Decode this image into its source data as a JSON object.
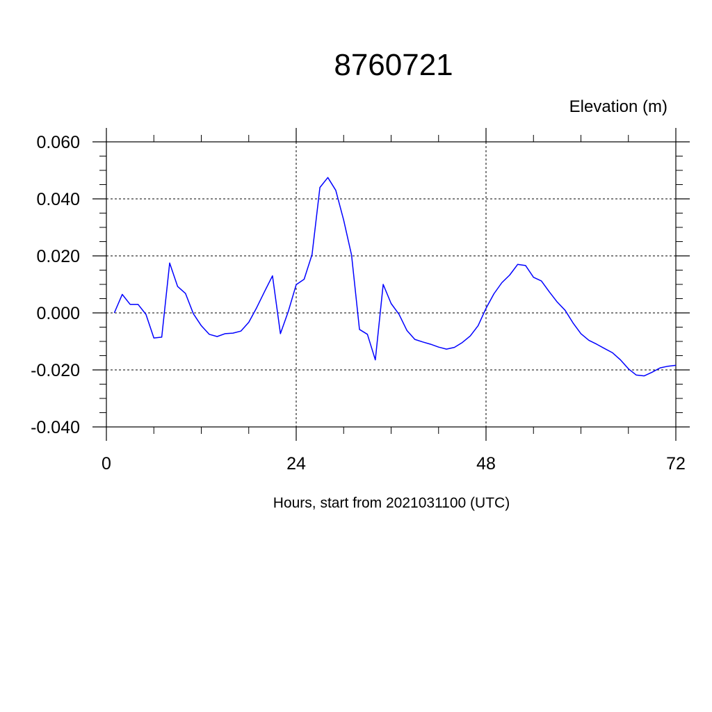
{
  "chart_data": {
    "type": "line",
    "title": "8760721",
    "ylabel": "Elevation (m)",
    "xlabel": "Hours, start from 2021031100 (UTC)",
    "xlim": [
      0,
      72
    ],
    "ylim": [
      -0.04,
      0.06
    ],
    "xticks": [
      0,
      24,
      48,
      72
    ],
    "xtick_labels": [
      "0",
      "24",
      "48",
      "72"
    ],
    "yticks": [
      0.06,
      0.04,
      0.02,
      0.0,
      -0.02,
      -0.04
    ],
    "ytick_labels": [
      "0.060",
      "0.040",
      "0.020",
      "0.000",
      "-0.020",
      "-0.040"
    ],
    "grid": true,
    "line_color": "#0000ff",
    "series": [
      {
        "x": [
          1,
          2,
          3,
          4,
          5,
          6,
          7,
          8,
          9,
          10,
          11,
          12,
          13,
          14,
          15,
          16,
          17,
          18,
          19,
          20,
          21,
          22,
          23,
          24,
          25,
          26,
          27,
          28,
          29,
          30,
          31,
          32,
          33,
          34,
          35,
          36,
          37,
          38,
          39,
          40,
          41,
          42,
          43,
          44,
          45,
          46,
          47,
          48,
          49,
          50,
          51,
          52,
          53,
          54,
          55,
          56,
          57,
          58,
          59,
          60,
          61,
          62,
          63,
          64,
          65,
          66,
          67,
          68,
          69,
          70,
          71,
          72
        ],
        "y": [
          0.0,
          0.0065,
          0.003,
          0.003,
          -0.0005,
          -0.0088,
          -0.0085,
          0.0175,
          0.0093,
          0.0068,
          -0.0003,
          -0.0045,
          -0.0075,
          -0.0083,
          -0.0073,
          -0.0071,
          -0.0064,
          -0.0033,
          0.0018,
          0.0075,
          0.013,
          -0.0073,
          0.0005,
          0.0099,
          0.0118,
          0.0205,
          0.044,
          0.0475,
          0.043,
          0.0325,
          0.0203,
          -0.0058,
          -0.0075,
          -0.0165,
          0.01,
          0.0033,
          -0.0005,
          -0.0062,
          -0.0093,
          -0.0102,
          -0.011,
          -0.012,
          -0.0127,
          -0.0121,
          -0.0104,
          -0.0081,
          -0.0045,
          0.0016,
          0.0067,
          0.0106,
          0.0133,
          0.017,
          0.0166,
          0.0125,
          0.0112,
          0.0074,
          0.0038,
          0.0009,
          -0.0035,
          -0.0073,
          -0.0096,
          -0.011,
          -0.0125,
          -0.014,
          -0.0165,
          -0.0196,
          -0.0218,
          -0.0221,
          -0.0208,
          -0.0193,
          -0.0187,
          -0.0184
        ]
      }
    ]
  }
}
